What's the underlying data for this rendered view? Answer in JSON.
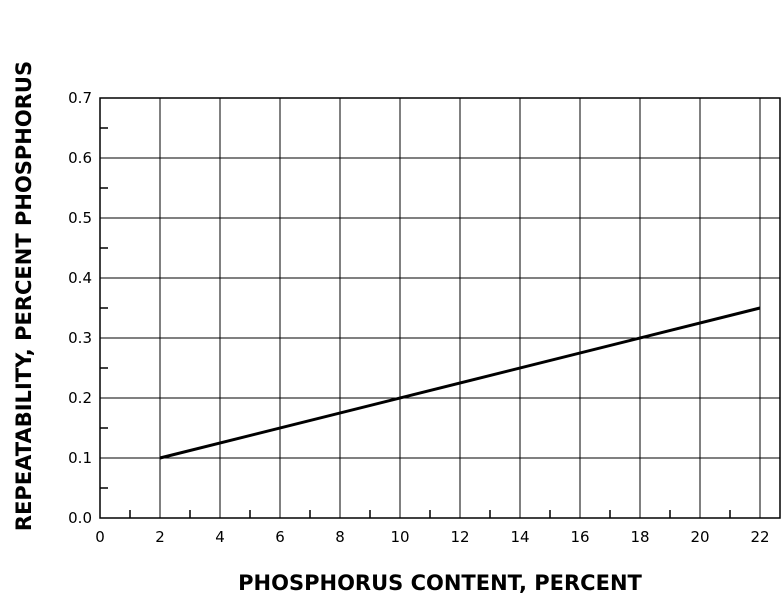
{
  "chart_data": {
    "type": "line",
    "xlabel": "PHOSPHORUS CONTENT, PERCENT",
    "ylabel": "REPEATABILITY,  PERCENT PHOSPHORUS",
    "x": [
      2,
      22
    ],
    "series": [
      {
        "color": "#000000",
        "values": [
          0.1,
          0.35
        ]
      }
    ],
    "xlim": [
      0,
      22
    ],
    "xticks": [
      0,
      2,
      4,
      6,
      8,
      10,
      12,
      14,
      16,
      18,
      20,
      22
    ],
    "ylim": [
      0,
      0.7
    ],
    "yticks": [
      {
        "value": 0,
        "label": "0.0"
      },
      0.1,
      0.2,
      0.3,
      0.4,
      0.5,
      0.6,
      0.7
    ],
    "grid": true
  }
}
